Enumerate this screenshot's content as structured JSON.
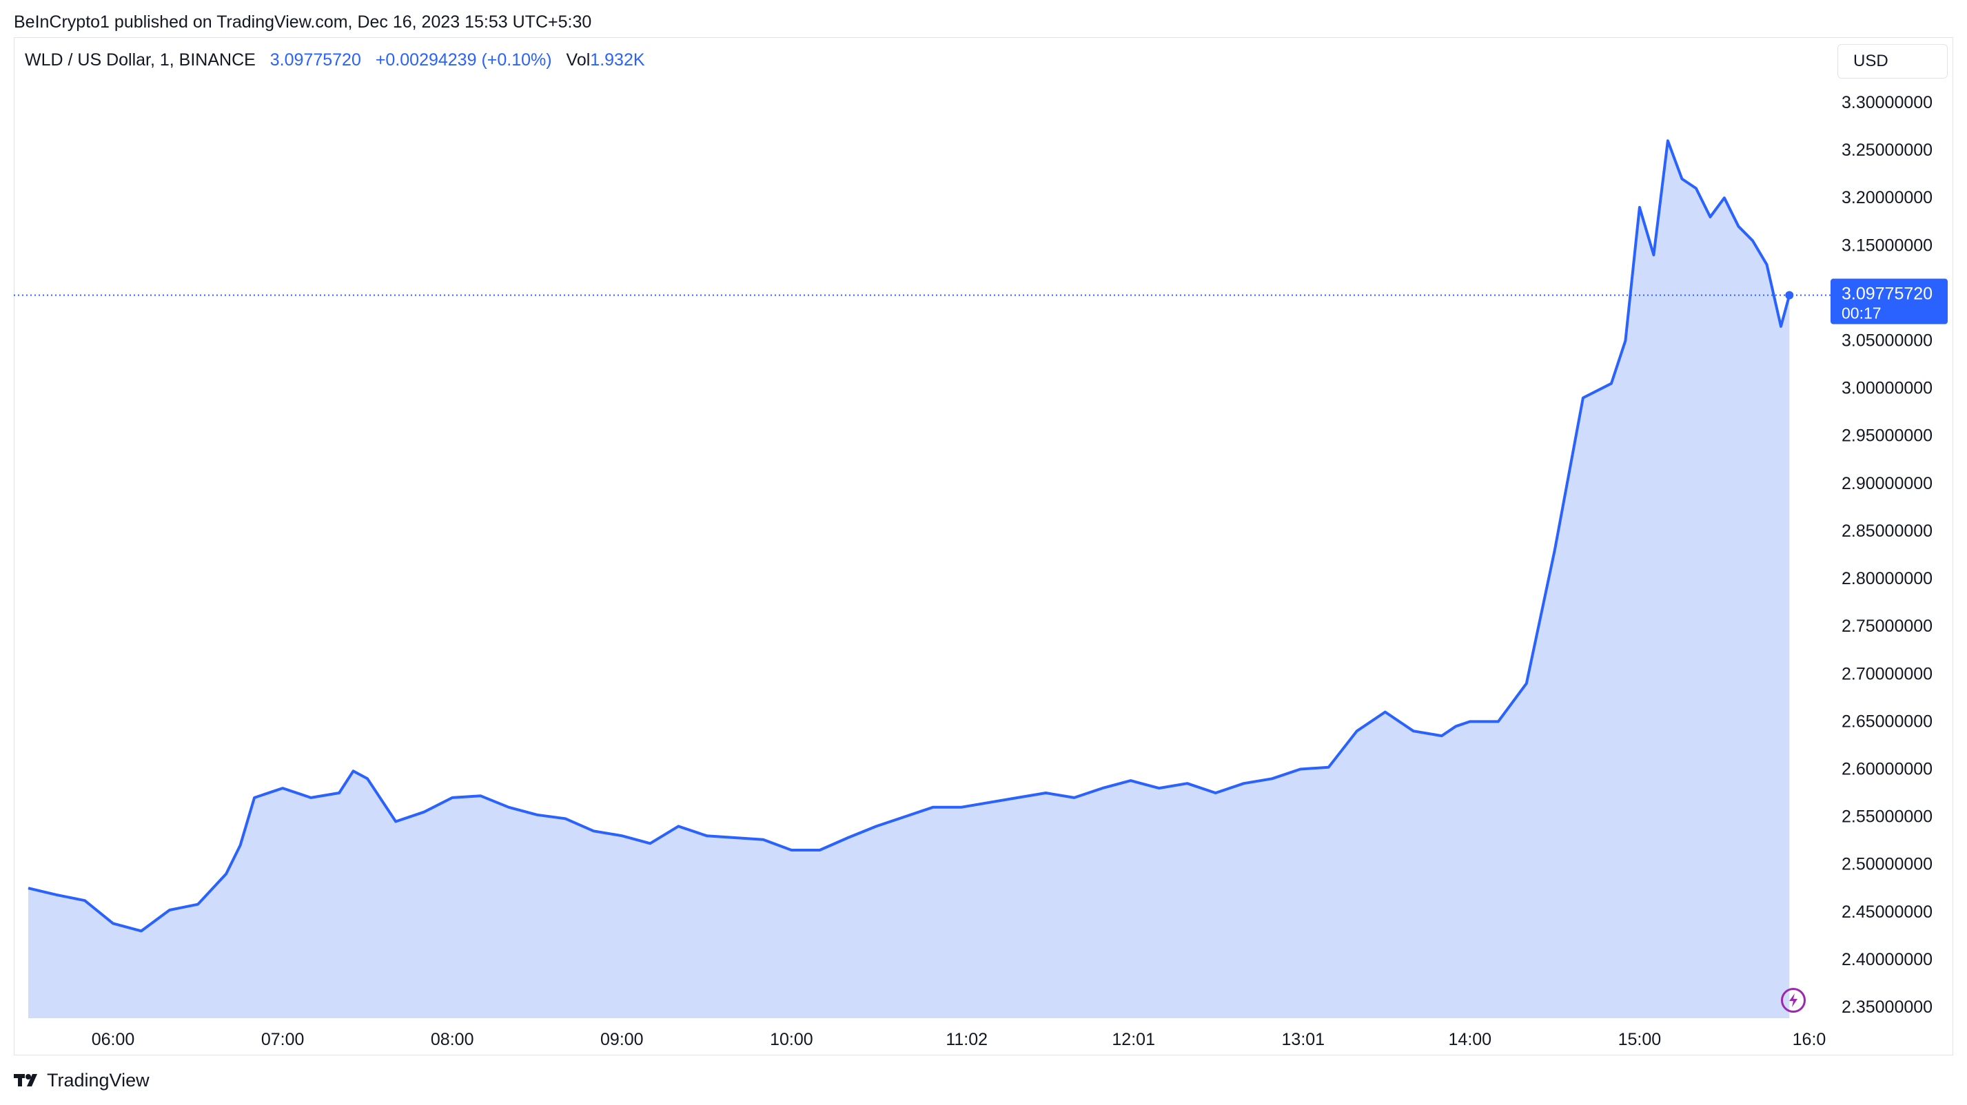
{
  "header": {
    "published": "BeInCrypto1 published on TradingView.com, Dec 16, 2023 15:53 UTC+5:30"
  },
  "legend": {
    "symbol": "WLD / US Dollar, 1, BINANCE",
    "price": "3.09775720",
    "change": "+0.00294239 (+0.10%)",
    "vol_label": "Vol",
    "vol_value": "1.932K"
  },
  "currency_button": "USD",
  "price_label": {
    "price": "3.09775720",
    "countdown": "00:17"
  },
  "footer": {
    "brand": "TradingView"
  },
  "icons": {
    "flash": "flash-icon",
    "logo": "tradingview-logo-icon"
  },
  "colors": {
    "line": "#2962ff",
    "area": "#cfdcfc",
    "label_bg": "#2962ff",
    "flash": "#9c27b0"
  },
  "chart_data": {
    "type": "area",
    "ylim": [
      2.34,
      3.33
    ],
    "y_ticks": [
      "3.30000000",
      "3.25000000",
      "3.20000000",
      "3.15000000",
      "3.10000000",
      "3.05000000",
      "3.00000000",
      "2.95000000",
      "2.90000000",
      "2.85000000",
      "2.80000000",
      "2.75000000",
      "2.70000000",
      "2.65000000",
      "2.60000000",
      "2.55000000",
      "2.50000000",
      "2.45000000",
      "2.40000000",
      "2.35000000"
    ],
    "x_ticks": [
      "06:00",
      "07:00",
      "08:00",
      "09:00",
      "10:00",
      "11:02",
      "12:01",
      "13:01",
      "14:00",
      "15:00",
      "16:0"
    ],
    "current_price": 3.0977572,
    "series": [
      {
        "x": [
          "05:30",
          "05:40",
          "05:50",
          "06:00",
          "06:10",
          "06:20",
          "06:30",
          "06:40",
          "06:45",
          "06:50",
          "07:00",
          "07:10",
          "07:20",
          "07:25",
          "07:30",
          "07:40",
          "07:50",
          "08:00",
          "08:10",
          "08:20",
          "08:30",
          "08:40",
          "08:50",
          "09:00",
          "09:10",
          "09:20",
          "09:30",
          "09:40",
          "09:50",
          "10:00",
          "10:10",
          "10:20",
          "10:30",
          "10:40",
          "10:50",
          "11:00",
          "11:10",
          "11:20",
          "11:30",
          "11:40",
          "11:50",
          "12:00",
          "12:10",
          "12:20",
          "12:30",
          "12:40",
          "12:50",
          "13:00",
          "13:10",
          "13:20",
          "13:30",
          "13:40",
          "13:50",
          "13:55",
          "14:00",
          "14:10",
          "14:20",
          "14:30",
          "14:40",
          "14:50",
          "14:55",
          "15:00",
          "15:05",
          "15:10",
          "15:15",
          "15:20",
          "15:25",
          "15:30",
          "15:35",
          "15:40",
          "15:45",
          "15:50",
          "15:53"
        ],
        "values": [
          2.475,
          2.468,
          2.462,
          2.438,
          2.43,
          2.452,
          2.458,
          2.49,
          2.52,
          2.57,
          2.58,
          2.57,
          2.575,
          2.598,
          2.59,
          2.545,
          2.555,
          2.57,
          2.572,
          2.56,
          2.552,
          2.548,
          2.535,
          2.53,
          2.522,
          2.54,
          2.53,
          2.528,
          2.526,
          2.515,
          2.515,
          2.528,
          2.54,
          2.55,
          2.56,
          2.56,
          2.565,
          2.57,
          2.575,
          2.57,
          2.58,
          2.588,
          2.58,
          2.585,
          2.575,
          2.585,
          2.59,
          2.6,
          2.602,
          2.64,
          2.66,
          2.64,
          2.635,
          2.645,
          2.65,
          2.65,
          2.69,
          2.83,
          2.99,
          3.005,
          3.05,
          3.19,
          3.14,
          3.26,
          3.22,
          3.21,
          3.18,
          3.2,
          3.17,
          3.155,
          3.13,
          3.065,
          3.0978
        ]
      }
    ]
  }
}
